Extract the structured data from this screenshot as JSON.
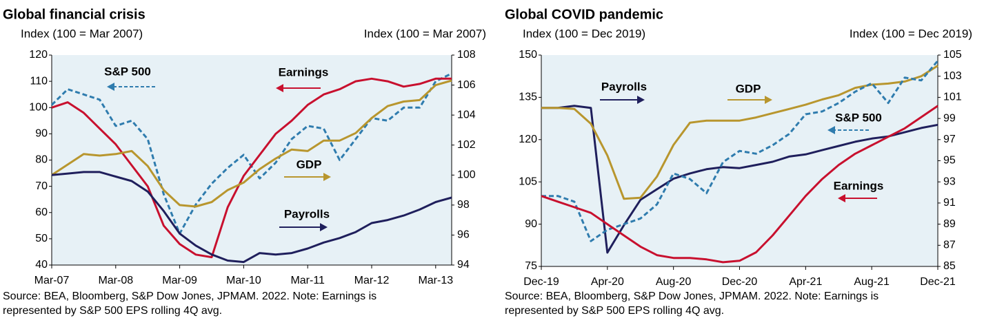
{
  "chart_data": [
    {
      "type": "line",
      "title": "Global financial crisis",
      "y_label": "Index (100 = Mar 2007)",
      "y2_label": "Index (100 = Mar 2007)",
      "x": [
        "Mar-07",
        "Jun-07",
        "Sep-07",
        "Dec-07",
        "Mar-08",
        "Jun-08",
        "Sep-08",
        "Dec-08",
        "Mar-09",
        "Jun-09",
        "Sep-09",
        "Dec-09",
        "Mar-10",
        "Jun-10",
        "Sep-10",
        "Dec-10",
        "Mar-11",
        "Jun-11",
        "Sep-11",
        "Dec-11",
        "Mar-12",
        "Jun-12",
        "Sep-12",
        "Dec-12",
        "Mar-13",
        "Jun-13"
      ],
      "xticks": [
        "Mar-07",
        "Mar-08",
        "Mar-09",
        "Mar-10",
        "Mar-11",
        "Mar-12",
        "Mar-13"
      ],
      "ylim": [
        40,
        120
      ],
      "yticks": [
        40,
        50,
        60,
        70,
        80,
        90,
        100,
        110,
        120
      ],
      "y2lim": [
        94,
        108
      ],
      "y2ticks": [
        94,
        96,
        98,
        100,
        102,
        104,
        106,
        108
      ],
      "series": [
        {
          "name": "S&P 500",
          "color": "#2f7cae",
          "dashed": true,
          "axis": "y",
          "values": [
            101,
            107,
            105,
            103,
            93,
            95,
            88,
            67,
            52,
            63,
            71,
            77,
            82,
            73,
            79,
            88,
            93,
            92,
            80,
            88,
            96,
            95,
            100,
            100,
            110,
            113
          ]
        },
        {
          "name": "Earnings",
          "color": "#c8102e",
          "dashed": false,
          "axis": "y",
          "values": [
            100,
            102,
            98,
            92,
            86,
            78,
            70,
            55,
            48,
            44,
            43,
            62,
            74,
            82,
            90,
            95,
            101,
            105,
            107,
            110,
            111,
            110,
            108,
            109,
            111,
            111
          ]
        },
        {
          "name": "GDP",
          "color": "#b8962e",
          "dashed": false,
          "axis": "y2",
          "values": [
            100,
            100.7,
            101.4,
            101.3,
            101.4,
            101.6,
            100.6,
            99,
            98,
            97.9,
            98.2,
            99,
            99.5,
            100.4,
            101.1,
            101.7,
            101.6,
            102.3,
            102.3,
            102.8,
            103.8,
            104.6,
            104.9,
            105,
            106,
            106.3
          ]
        },
        {
          "name": "Payrolls",
          "color": "#1f1f5c",
          "dashed": false,
          "axis": "y2",
          "values": [
            100,
            100.1,
            100.2,
            100.2,
            99.9,
            99.6,
            98.9,
            97.6,
            96.1,
            95.3,
            94.7,
            94.3,
            94.2,
            94.8,
            94.7,
            94.8,
            95.1,
            95.5,
            95.8,
            96.2,
            96.8,
            97,
            97.3,
            97.7,
            98.2,
            98.5
          ]
        }
      ],
      "source": [
        "Source: BEA, Bloomberg, S&P Dow Jones, JPMAM. 2022. Note: Earnings is",
        "represented by S&P 500 EPS rolling 4Q avg."
      ]
    },
    {
      "type": "line",
      "title": "Global COVID pandemic",
      "y_label": "Index (100 = Dec 2019)",
      "y2_label": "Index (100 = Dec 2019)",
      "x": [
        "Dec-19",
        "Jan-20",
        "Feb-20",
        "Mar-20",
        "Apr-20",
        "May-20",
        "Jun-20",
        "Jul-20",
        "Aug-20",
        "Sep-20",
        "Oct-20",
        "Nov-20",
        "Dec-20",
        "Jan-21",
        "Feb-21",
        "Mar-21",
        "Apr-21",
        "May-21",
        "Jun-21",
        "Jul-21",
        "Aug-21",
        "Sep-21",
        "Oct-21",
        "Nov-21",
        "Dec-21"
      ],
      "xticks": [
        "Dec-19",
        "Apr-20",
        "Aug-20",
        "Dec-20",
        "Apr-21",
        "Aug-21",
        "Dec-21"
      ],
      "ylim": [
        75,
        150
      ],
      "yticks": [
        75,
        90,
        105,
        120,
        135,
        150
      ],
      "y2lim": [
        85,
        105
      ],
      "y2ticks": [
        85,
        87,
        89,
        91,
        93,
        95,
        97,
        99,
        101,
        103,
        105
      ],
      "series": [
        {
          "name": "Payrolls",
          "color": "#1f1f5c",
          "dashed": false,
          "axis": "y2",
          "values": [
            100,
            100,
            100.2,
            100,
            86.3,
            88.9,
            91.3,
            92.3,
            93.3,
            93.8,
            94.2,
            94.4,
            94.3,
            94.6,
            94.9,
            95.4,
            95.6,
            96,
            96.4,
            96.8,
            97.1,
            97.3,
            97.7,
            98.1,
            98.4
          ]
        },
        {
          "name": "GDP",
          "color": "#b8962e",
          "dashed": false,
          "axis": "y2",
          "values": [
            100,
            100,
            99.9,
            98.5,
            95.5,
            91.4,
            91.5,
            93.5,
            96.5,
            98.6,
            98.8,
            98.8,
            98.8,
            99.1,
            99.5,
            99.9,
            100.3,
            100.8,
            101.2,
            101.9,
            102.2,
            102.3,
            102.5,
            103,
            104
          ]
        },
        {
          "name": "S&P 500",
          "color": "#2f7cae",
          "dashed": true,
          "axis": "y",
          "values": [
            100,
            100,
            98,
            84,
            88,
            90,
            92,
            97,
            108,
            106,
            101,
            112,
            116,
            115,
            118,
            122,
            129,
            130,
            133,
            137,
            140,
            133,
            142,
            141,
            148
          ]
        },
        {
          "name": "Earnings",
          "color": "#c8102e",
          "dashed": false,
          "axis": "y",
          "values": [
            100,
            98,
            96,
            94,
            90,
            86,
            82,
            79,
            78,
            78,
            77.5,
            76.5,
            77,
            80,
            86,
            93,
            100,
            106,
            111,
            115,
            118,
            121,
            124,
            128,
            132
          ]
        }
      ],
      "source": [
        "Source: BEA, Bloomberg, S&P Dow Jones, JPMAM. 2022. Note: Earnings is",
        "represented by S&P 500 EPS rolling 4Q avg."
      ]
    }
  ]
}
